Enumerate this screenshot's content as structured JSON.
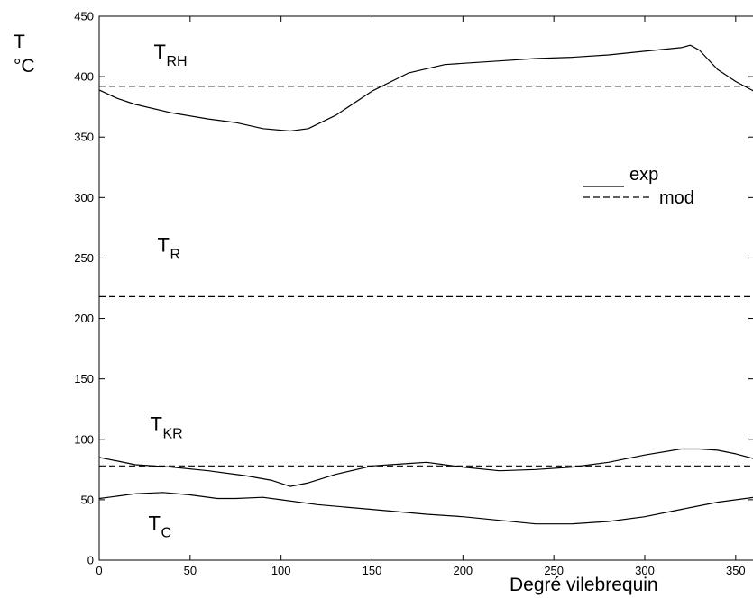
{
  "chart_data": {
    "type": "line",
    "title": "",
    "xlabel": "Degré vilebrequin",
    "ylabel_lines": [
      "T",
      "°C"
    ],
    "xlim": [
      0,
      360
    ],
    "ylim": [
      0,
      450
    ],
    "xticks": [
      0,
      50,
      100,
      150,
      200,
      250,
      300,
      350
    ],
    "yticks": [
      0,
      50,
      100,
      150,
      200,
      250,
      300,
      350,
      400,
      450
    ],
    "grid": false,
    "legend": {
      "placement": "right-middle",
      "entries": [
        {
          "label": "exp",
          "style": "solid"
        },
        {
          "label": "mod",
          "style": "dashed"
        }
      ]
    },
    "annotations": [
      {
        "main": "T",
        "sub": "RH",
        "x": 30,
        "y": 415
      },
      {
        "main": "T",
        "sub": "R",
        "x": 32,
        "y": 255
      },
      {
        "main": "T",
        "sub": "KR",
        "x": 28,
        "y": 107
      },
      {
        "main": "T",
        "sub": "C",
        "x": 27,
        "y": 25
      }
    ],
    "series": [
      {
        "style": "solid",
        "x": [
          0,
          10,
          20,
          40,
          60,
          75,
          90,
          105,
          115,
          130,
          150,
          170,
          190,
          200,
          220,
          240,
          260,
          280,
          300,
          320,
          325,
          330,
          340,
          350,
          360
        ],
        "y": [
          389,
          382,
          377,
          370,
          365,
          362,
          357,
          355,
          357,
          368,
          388,
          403,
          410,
          411,
          413,
          415,
          416,
          418,
          421,
          424,
          426,
          422,
          406,
          396,
          388
        ]
      },
      {
        "style": "solid",
        "x": [
          0,
          10,
          20,
          40,
          60,
          80,
          95,
          105,
          115,
          130,
          150,
          170,
          180,
          190,
          200,
          220,
          240,
          260,
          280,
          300,
          320,
          330,
          340,
          350,
          360
        ],
        "y": [
          85,
          82,
          79,
          77,
          74,
          70,
          66,
          61,
          64,
          71,
          78,
          80,
          81,
          79,
          77,
          74,
          75,
          77,
          81,
          87,
          92,
          92,
          91,
          88,
          84
        ]
      },
      {
        "style": "solid",
        "x": [
          0,
          10,
          20,
          35,
          50,
          65,
          75,
          90,
          100,
          120,
          150,
          180,
          200,
          220,
          240,
          260,
          280,
          300,
          320,
          340,
          360
        ],
        "y": [
          51,
          53,
          55,
          56,
          54,
          51,
          51,
          52,
          50,
          46,
          42,
          38,
          36,
          33,
          30,
          30,
          32,
          36,
          42,
          48,
          52
        ]
      },
      {
        "style": "dashed",
        "x": [
          0,
          360
        ],
        "y": [
          392,
          392
        ]
      },
      {
        "style": "dashed",
        "x": [
          0,
          360
        ],
        "y": [
          218,
          218
        ]
      },
      {
        "style": "dashed",
        "x": [
          0,
          360
        ],
        "y": [
          78,
          78
        ]
      }
    ]
  }
}
